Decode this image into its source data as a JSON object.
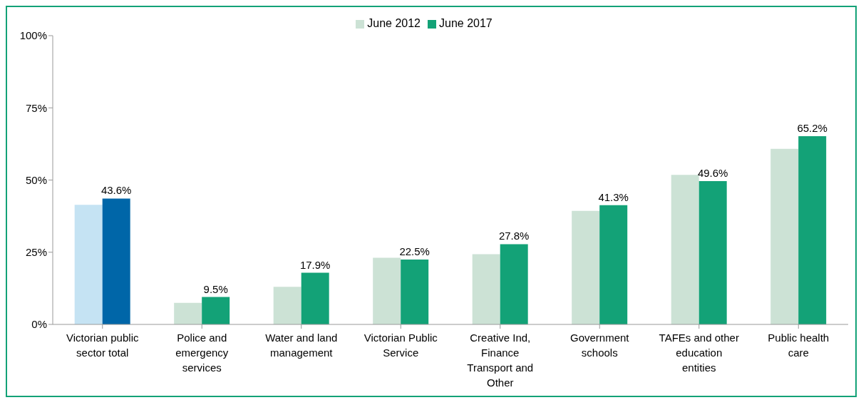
{
  "chart_data": {
    "type": "bar",
    "categories": [
      "Victorian public sector total",
      "Police and emergency services",
      "Water and land management",
      "Victorian Public Service",
      "Creative Ind, Finance Transport and Other",
      "Government schools",
      "TAFEs and other education entities",
      "Public health care"
    ],
    "series": [
      {
        "name": "June 2012",
        "color": "#cce2d5",
        "colors": [
          "#c5e3f3",
          "#cce2d5",
          "#cce2d5",
          "#cce2d5",
          "#cce2d5",
          "#cce2d5",
          "#cce2d5",
          "#cce2d5"
        ],
        "values": [
          41.4,
          7.5,
          13.0,
          23.1,
          24.3,
          39.3,
          51.8,
          60.8
        ]
      },
      {
        "name": "June 2017",
        "color": "#13a277",
        "colors": [
          "#0066a8",
          "#13a277",
          "#13a277",
          "#13a277",
          "#13a277",
          "#13a277",
          "#13a277",
          "#13a277"
        ],
        "values": [
          43.6,
          9.5,
          17.9,
          22.5,
          27.8,
          41.3,
          49.6,
          65.2
        ],
        "value_labels": [
          "43.6%",
          "9.5%",
          "17.9%",
          "22.5%",
          "27.8%",
          "41.3%",
          "49.6%",
          "65.2%"
        ]
      }
    ],
    "ylim": [
      0,
      100
    ],
    "yticks": [
      {
        "value": 0,
        "label": "0%"
      },
      {
        "value": 25,
        "label": "25%"
      },
      {
        "value": 50,
        "label": "50%"
      },
      {
        "value": 75,
        "label": "75%"
      },
      {
        "value": 100,
        "label": "100%"
      }
    ],
    "grid": false,
    "legend": "top"
  }
}
